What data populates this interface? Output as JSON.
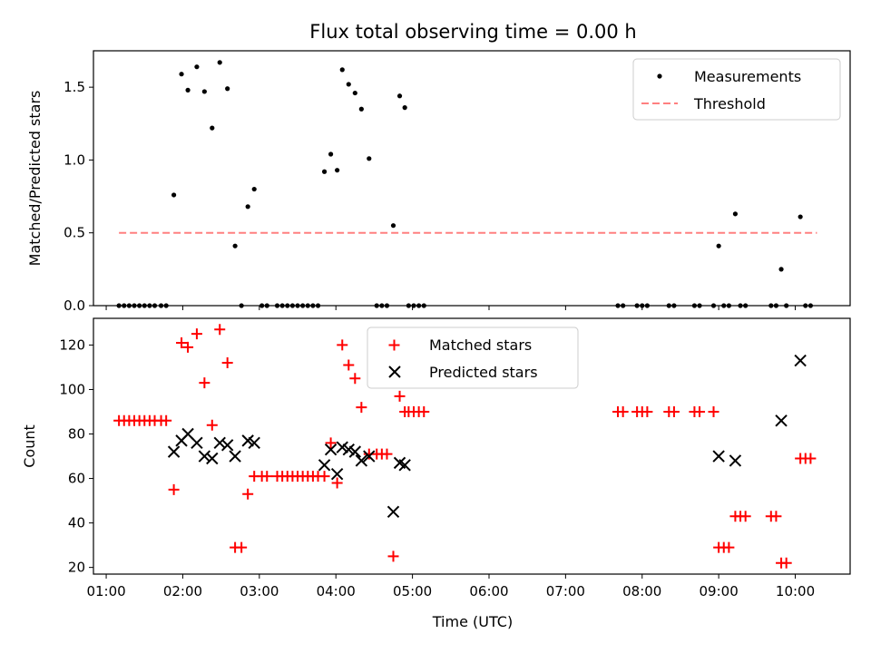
{
  "chart_data": [
    {
      "type": "scatter",
      "title": "Flux total observing time = 0.00 h",
      "xlabel": "",
      "ylabel": "Matched/Predicted stars",
      "xlim": [
        "00:50",
        "10:43"
      ],
      "ylim": [
        0,
        1.75
      ],
      "yticks": [
        "0.0",
        "0.5",
        "1.0",
        "1.5"
      ],
      "ytick_values": [
        0,
        0.5,
        1.0,
        1.5
      ],
      "legend": {
        "placement": "top-right",
        "entries": [
          "Measurements",
          "Threshold"
        ]
      },
      "grid": false,
      "series": [
        {
          "name": "Measurements",
          "color": "#000000",
          "marker": "dot",
          "points": [
            [
              "01:10",
              0
            ],
            [
              "01:14",
              0
            ],
            [
              "01:18",
              0
            ],
            [
              "01:22",
              0
            ],
            [
              "01:26",
              0
            ],
            [
              "01:30",
              0
            ],
            [
              "01:34",
              0
            ],
            [
              "01:38",
              0
            ],
            [
              "01:43",
              0
            ],
            [
              "01:47",
              0
            ],
            [
              "01:53",
              0.76
            ],
            [
              "01:59",
              1.59
            ],
            [
              "02:04",
              1.48
            ],
            [
              "02:11",
              1.64
            ],
            [
              "02:17",
              1.47
            ],
            [
              "02:23",
              1.22
            ],
            [
              "02:29",
              1.67
            ],
            [
              "02:35",
              1.49
            ],
            [
              "02:41",
              0.41
            ],
            [
              "02:46",
              0
            ],
            [
              "02:51",
              0.68
            ],
            [
              "02:56",
              0.8
            ],
            [
              "03:02",
              0
            ],
            [
              "03:06",
              0
            ],
            [
              "03:14",
              0
            ],
            [
              "03:18",
              0
            ],
            [
              "03:22",
              0
            ],
            [
              "03:26",
              0
            ],
            [
              "03:30",
              0
            ],
            [
              "03:34",
              0
            ],
            [
              "03:38",
              0
            ],
            [
              "03:42",
              0
            ],
            [
              "03:46",
              0
            ],
            [
              "03:51",
              0.92
            ],
            [
              "03:56",
              1.04
            ],
            [
              "04:01",
              0.93
            ],
            [
              "04:05",
              1.62
            ],
            [
              "04:10",
              1.52
            ],
            [
              "04:15",
              1.46
            ],
            [
              "04:20",
              1.35
            ],
            [
              "04:26",
              1.01
            ],
            [
              "04:32",
              0
            ],
            [
              "04:36",
              0
            ],
            [
              "04:40",
              0
            ],
            [
              "04:45",
              0.55
            ],
            [
              "04:50",
              1.44
            ],
            [
              "04:54",
              1.36
            ],
            [
              "04:57",
              0
            ],
            [
              "05:01",
              0
            ],
            [
              "05:05",
              0
            ],
            [
              "05:09",
              0
            ],
            [
              "07:41",
              0
            ],
            [
              "07:45",
              0
            ],
            [
              "07:56",
              0
            ],
            [
              "08:00",
              0
            ],
            [
              "08:04",
              0
            ],
            [
              "08:21",
              0
            ],
            [
              "08:25",
              0
            ],
            [
              "08:41",
              0
            ],
            [
              "08:45",
              0
            ],
            [
              "08:56",
              0
            ],
            [
              "09:00",
              0.41
            ],
            [
              "09:04",
              0
            ],
            [
              "09:08",
              0
            ],
            [
              "09:13",
              0.63
            ],
            [
              "09:17",
              0
            ],
            [
              "09:21",
              0
            ],
            [
              "09:41",
              0
            ],
            [
              "09:45",
              0
            ],
            [
              "09:49",
              0.25
            ],
            [
              "09:53",
              0
            ],
            [
              "10:04",
              0.61
            ],
            [
              "10:08",
              0
            ],
            [
              "10:12",
              0
            ]
          ]
        },
        {
          "name": "Threshold",
          "color": "#ff8080",
          "style": "dashed",
          "points": [
            [
              "01:10",
              0.5
            ],
            [
              "10:17",
              0.5
            ]
          ]
        }
      ]
    },
    {
      "type": "scatter",
      "title": "",
      "xlabel": "Time (UTC)",
      "ylabel": "Count",
      "xlim": [
        "00:50",
        "10:43"
      ],
      "ylim": [
        17,
        132
      ],
      "xticks": [
        "01:00",
        "02:00",
        "03:00",
        "04:00",
        "05:00",
        "06:00",
        "07:00",
        "08:00",
        "09:00",
        "10:00"
      ],
      "yticks": [
        "20",
        "40",
        "60",
        "80",
        "100",
        "120"
      ],
      "ytick_values": [
        20,
        40,
        60,
        80,
        100,
        120
      ],
      "legend": {
        "placement": "top-center",
        "entries": [
          "Matched stars",
          "Predicted stars"
        ]
      },
      "grid": false,
      "series": [
        {
          "name": "Matched stars",
          "color": "#ff0000",
          "marker": "plus",
          "points": [
            [
              "01:10",
              86
            ],
            [
              "01:14",
              86
            ],
            [
              "01:18",
              86
            ],
            [
              "01:22",
              86
            ],
            [
              "01:26",
              86
            ],
            [
              "01:30",
              86
            ],
            [
              "01:34",
              86
            ],
            [
              "01:38",
              86
            ],
            [
              "01:43",
              86
            ],
            [
              "01:47",
              86
            ],
            [
              "01:53",
              55
            ],
            [
              "01:59",
              121
            ],
            [
              "02:04",
              119
            ],
            [
              "02:11",
              125
            ],
            [
              "02:17",
              103
            ],
            [
              "02:23",
              84
            ],
            [
              "02:29",
              127
            ],
            [
              "02:35",
              112
            ],
            [
              "02:41",
              29
            ],
            [
              "02:46",
              29
            ],
            [
              "02:51",
              53
            ],
            [
              "02:56",
              61
            ],
            [
              "03:02",
              61
            ],
            [
              "03:06",
              61
            ],
            [
              "03:14",
              61
            ],
            [
              "03:18",
              61
            ],
            [
              "03:22",
              61
            ],
            [
              "03:26",
              61
            ],
            [
              "03:30",
              61
            ],
            [
              "03:34",
              61
            ],
            [
              "03:38",
              61
            ],
            [
              "03:42",
              61
            ],
            [
              "03:46",
              61
            ],
            [
              "03:51",
              61
            ],
            [
              "03:56",
              76
            ],
            [
              "04:01",
              58
            ],
            [
              "04:05",
              120
            ],
            [
              "04:10",
              111
            ],
            [
              "04:15",
              105
            ],
            [
              "04:20",
              92
            ],
            [
              "04:26",
              71
            ],
            [
              "04:32",
              71
            ],
            [
              "04:36",
              71
            ],
            [
              "04:40",
              71
            ],
            [
              "04:45",
              25
            ],
            [
              "04:50",
              97
            ],
            [
              "04:54",
              90
            ],
            [
              "04:57",
              90
            ],
            [
              "05:01",
              90
            ],
            [
              "05:05",
              90
            ],
            [
              "05:09",
              90
            ],
            [
              "07:41",
              90
            ],
            [
              "07:45",
              90
            ],
            [
              "07:56",
              90
            ],
            [
              "08:00",
              90
            ],
            [
              "08:04",
              90
            ],
            [
              "08:21",
              90
            ],
            [
              "08:25",
              90
            ],
            [
              "08:41",
              90
            ],
            [
              "08:45",
              90
            ],
            [
              "08:56",
              90
            ],
            [
              "09:00",
              29
            ],
            [
              "09:04",
              29
            ],
            [
              "09:08",
              29
            ],
            [
              "09:13",
              43
            ],
            [
              "09:17",
              43
            ],
            [
              "09:21",
              43
            ],
            [
              "09:41",
              43
            ],
            [
              "09:45",
              43
            ],
            [
              "09:49",
              22
            ],
            [
              "09:53",
              22
            ],
            [
              "10:04",
              69
            ],
            [
              "10:08",
              69
            ],
            [
              "10:12",
              69
            ]
          ]
        },
        {
          "name": "Predicted stars",
          "color": "#000000",
          "marker": "x",
          "points": [
            [
              "01:53",
              72
            ],
            [
              "01:59",
              77
            ],
            [
              "02:04",
              80
            ],
            [
              "02:11",
              76
            ],
            [
              "02:17",
              70
            ],
            [
              "02:23",
              69
            ],
            [
              "02:29",
              76
            ],
            [
              "02:35",
              75
            ],
            [
              "02:41",
              70
            ],
            [
              "02:51",
              77
            ],
            [
              "02:56",
              76
            ],
            [
              "03:51",
              66
            ],
            [
              "03:56",
              73
            ],
            [
              "04:01",
              62
            ],
            [
              "04:05",
              74
            ],
            [
              "04:10",
              73
            ],
            [
              "04:15",
              72
            ],
            [
              "04:20",
              68
            ],
            [
              "04:26",
              70
            ],
            [
              "04:45",
              45
            ],
            [
              "04:50",
              67
            ],
            [
              "04:54",
              66
            ],
            [
              "09:00",
              70
            ],
            [
              "09:13",
              68
            ],
            [
              "09:49",
              86
            ],
            [
              "10:04",
              113
            ]
          ]
        }
      ]
    }
  ]
}
